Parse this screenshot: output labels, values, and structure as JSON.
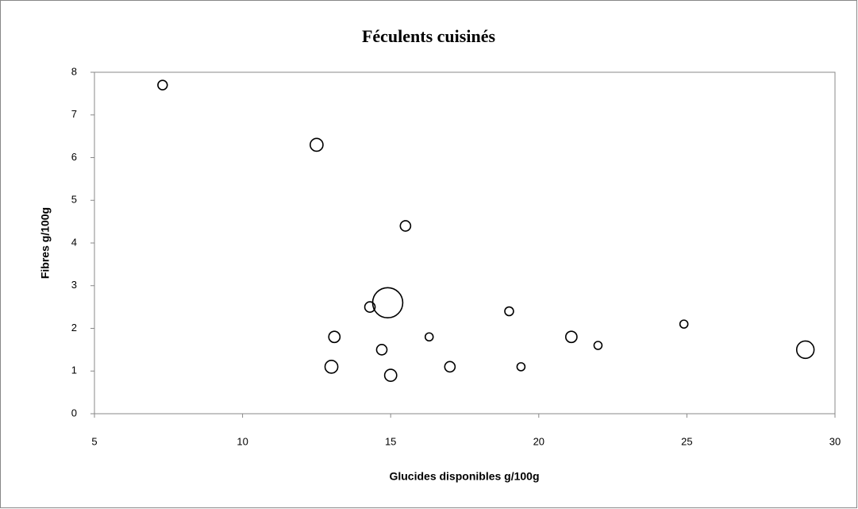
{
  "chart_data": {
    "type": "scatter",
    "title": "Féculents cuisinés",
    "x_label": "Glucides disponibles g/100g",
    "y_label": "Fibres g/100g",
    "x": [
      7.3,
      12.5,
      15.5,
      14.9,
      14.3,
      13.1,
      13.0,
      14.7,
      15.0,
      16.3,
      17.0,
      19.0,
      19.4,
      21.1,
      22.0,
      24.9,
      29.0
    ],
    "values": [
      7.7,
      6.3,
      4.4,
      2.6,
      2.5,
      1.8,
      1.1,
      1.5,
      0.9,
      1.8,
      1.1,
      2.4,
      1.1,
      1.8,
      1.6,
      2.1,
      1.5
    ],
    "sizes": [
      1.4,
      2.6,
      1.7,
      14.4,
      1.7,
      2,
      2.6,
      1.7,
      2.3,
      1,
      1.7,
      1.2,
      1,
      2,
      1,
      1,
      4.8
    ],
    "color": "#000000",
    "xlim": [
      5,
      30
    ],
    "xticks": [
      5,
      10,
      15,
      20,
      25,
      30
    ],
    "ylim": [
      0,
      8
    ],
    "yticks": [
      0,
      1,
      2,
      3,
      4,
      5,
      6,
      7,
      8
    ],
    "grid": false
  }
}
